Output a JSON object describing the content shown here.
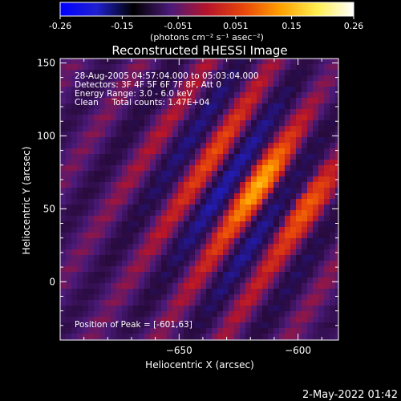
{
  "chart_data": {
    "type": "heatmap",
    "title": "Reconstructed RHESSI Image",
    "xlabel": "Heliocentric X (arcsec)",
    "ylabel": "Heliocentric Y (arcsec)",
    "xlim": [
      -700,
      -583
    ],
    "ylim": [
      -40,
      153
    ],
    "xticks": [
      -650,
      -600,
      -550
    ],
    "yticks": [
      0,
      50,
      100,
      150
    ],
    "info_lines": [
      "28-Aug-2005 04:57:04.000 to 05:03:04.000",
      "Detectors: 3F 4F 5F 6F 7F 8F, Att 0",
      "Energy Range: 3.0 - 6.0 keV",
      "Clean     Total counts: 1.47E+04"
    ],
    "peak_label": "Position of Peak = [-601,63]",
    "peak": [
      -601,
      63
    ],
    "colorbar": {
      "range": [
        -0.26,
        0.26
      ],
      "ticks": [
        "-0.26",
        "-0.15",
        "-0.051",
        "0.051",
        "0.15",
        "0.26"
      ],
      "unit": "(photons cm⁻² s⁻¹ asec⁻²)",
      "colors": [
        "#0000ff",
        "#2020d0",
        "#000000",
        "#4b1a7a",
        "#b5142b",
        "#e8460a",
        "#ffa000",
        "#ffee50",
        "#ffffff"
      ]
    },
    "timestamp": "2-May-2022 01:42"
  }
}
